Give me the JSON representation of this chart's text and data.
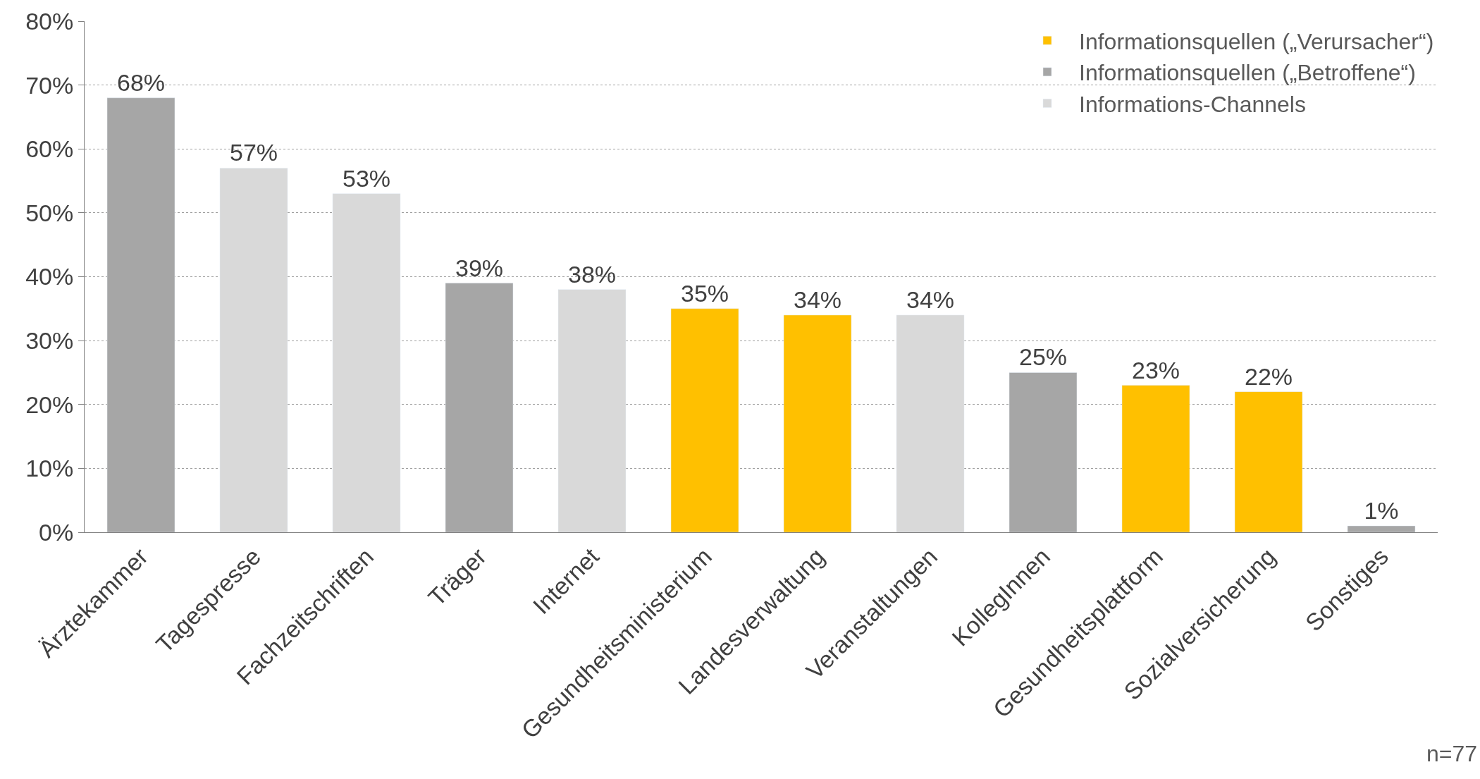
{
  "chart_data": {
    "type": "bar",
    "categories": [
      "Ärztekammer",
      "Tagespresse",
      "Fachzeitschriften",
      "Träger",
      "Internet",
      "Gesundheitsministerium",
      "Landesverwaltung",
      "Veranstaltungen",
      "KollegInnen",
      "Gesundheitsplattform",
      "Sozialversicherung",
      "Sonstiges"
    ],
    "series": [
      {
        "name": "Informationsquellen („Verursacher“)",
        "color": "#ffc000",
        "values": [
          null,
          null,
          null,
          null,
          null,
          35,
          34,
          null,
          null,
          23,
          22,
          null
        ],
        "value_labels": [
          null,
          null,
          null,
          null,
          null,
          "35%",
          "34%",
          null,
          null,
          "23%",
          "22%",
          null
        ]
      },
      {
        "name": "Informationsquellen („Betroffene“)",
        "color": "#a6a6a6",
        "values": [
          68,
          null,
          null,
          39,
          null,
          null,
          null,
          null,
          25,
          null,
          null,
          1
        ],
        "value_labels": [
          "68%",
          null,
          null,
          "39%",
          null,
          null,
          null,
          null,
          "25%",
          null,
          null,
          "1%"
        ]
      },
      {
        "name": "Informations-Channels",
        "color": "#d9d9d9",
        "values": [
          null,
          57,
          53,
          null,
          38,
          null,
          null,
          34,
          null,
          null,
          null,
          null
        ],
        "value_labels": [
          null,
          "57%",
          "53%",
          null,
          "38%",
          null,
          null,
          "34%",
          null,
          null,
          null,
          null
        ]
      }
    ],
    "ylim": [
      0,
      80
    ],
    "yticks": [
      {
        "value": 0,
        "label": "0%"
      },
      {
        "value": 10,
        "label": "10%"
      },
      {
        "value": 20,
        "label": "20%"
      },
      {
        "value": 30,
        "label": "30%"
      },
      {
        "value": 40,
        "label": "40%"
      },
      {
        "value": 50,
        "label": "50%"
      },
      {
        "value": 60,
        "label": "60%"
      },
      {
        "value": 70,
        "label": "70%"
      },
      {
        "value": 80,
        "label": "80%"
      }
    ],
    "grid": "y",
    "legend": "top right",
    "annotations": [
      "n=77"
    ]
  }
}
